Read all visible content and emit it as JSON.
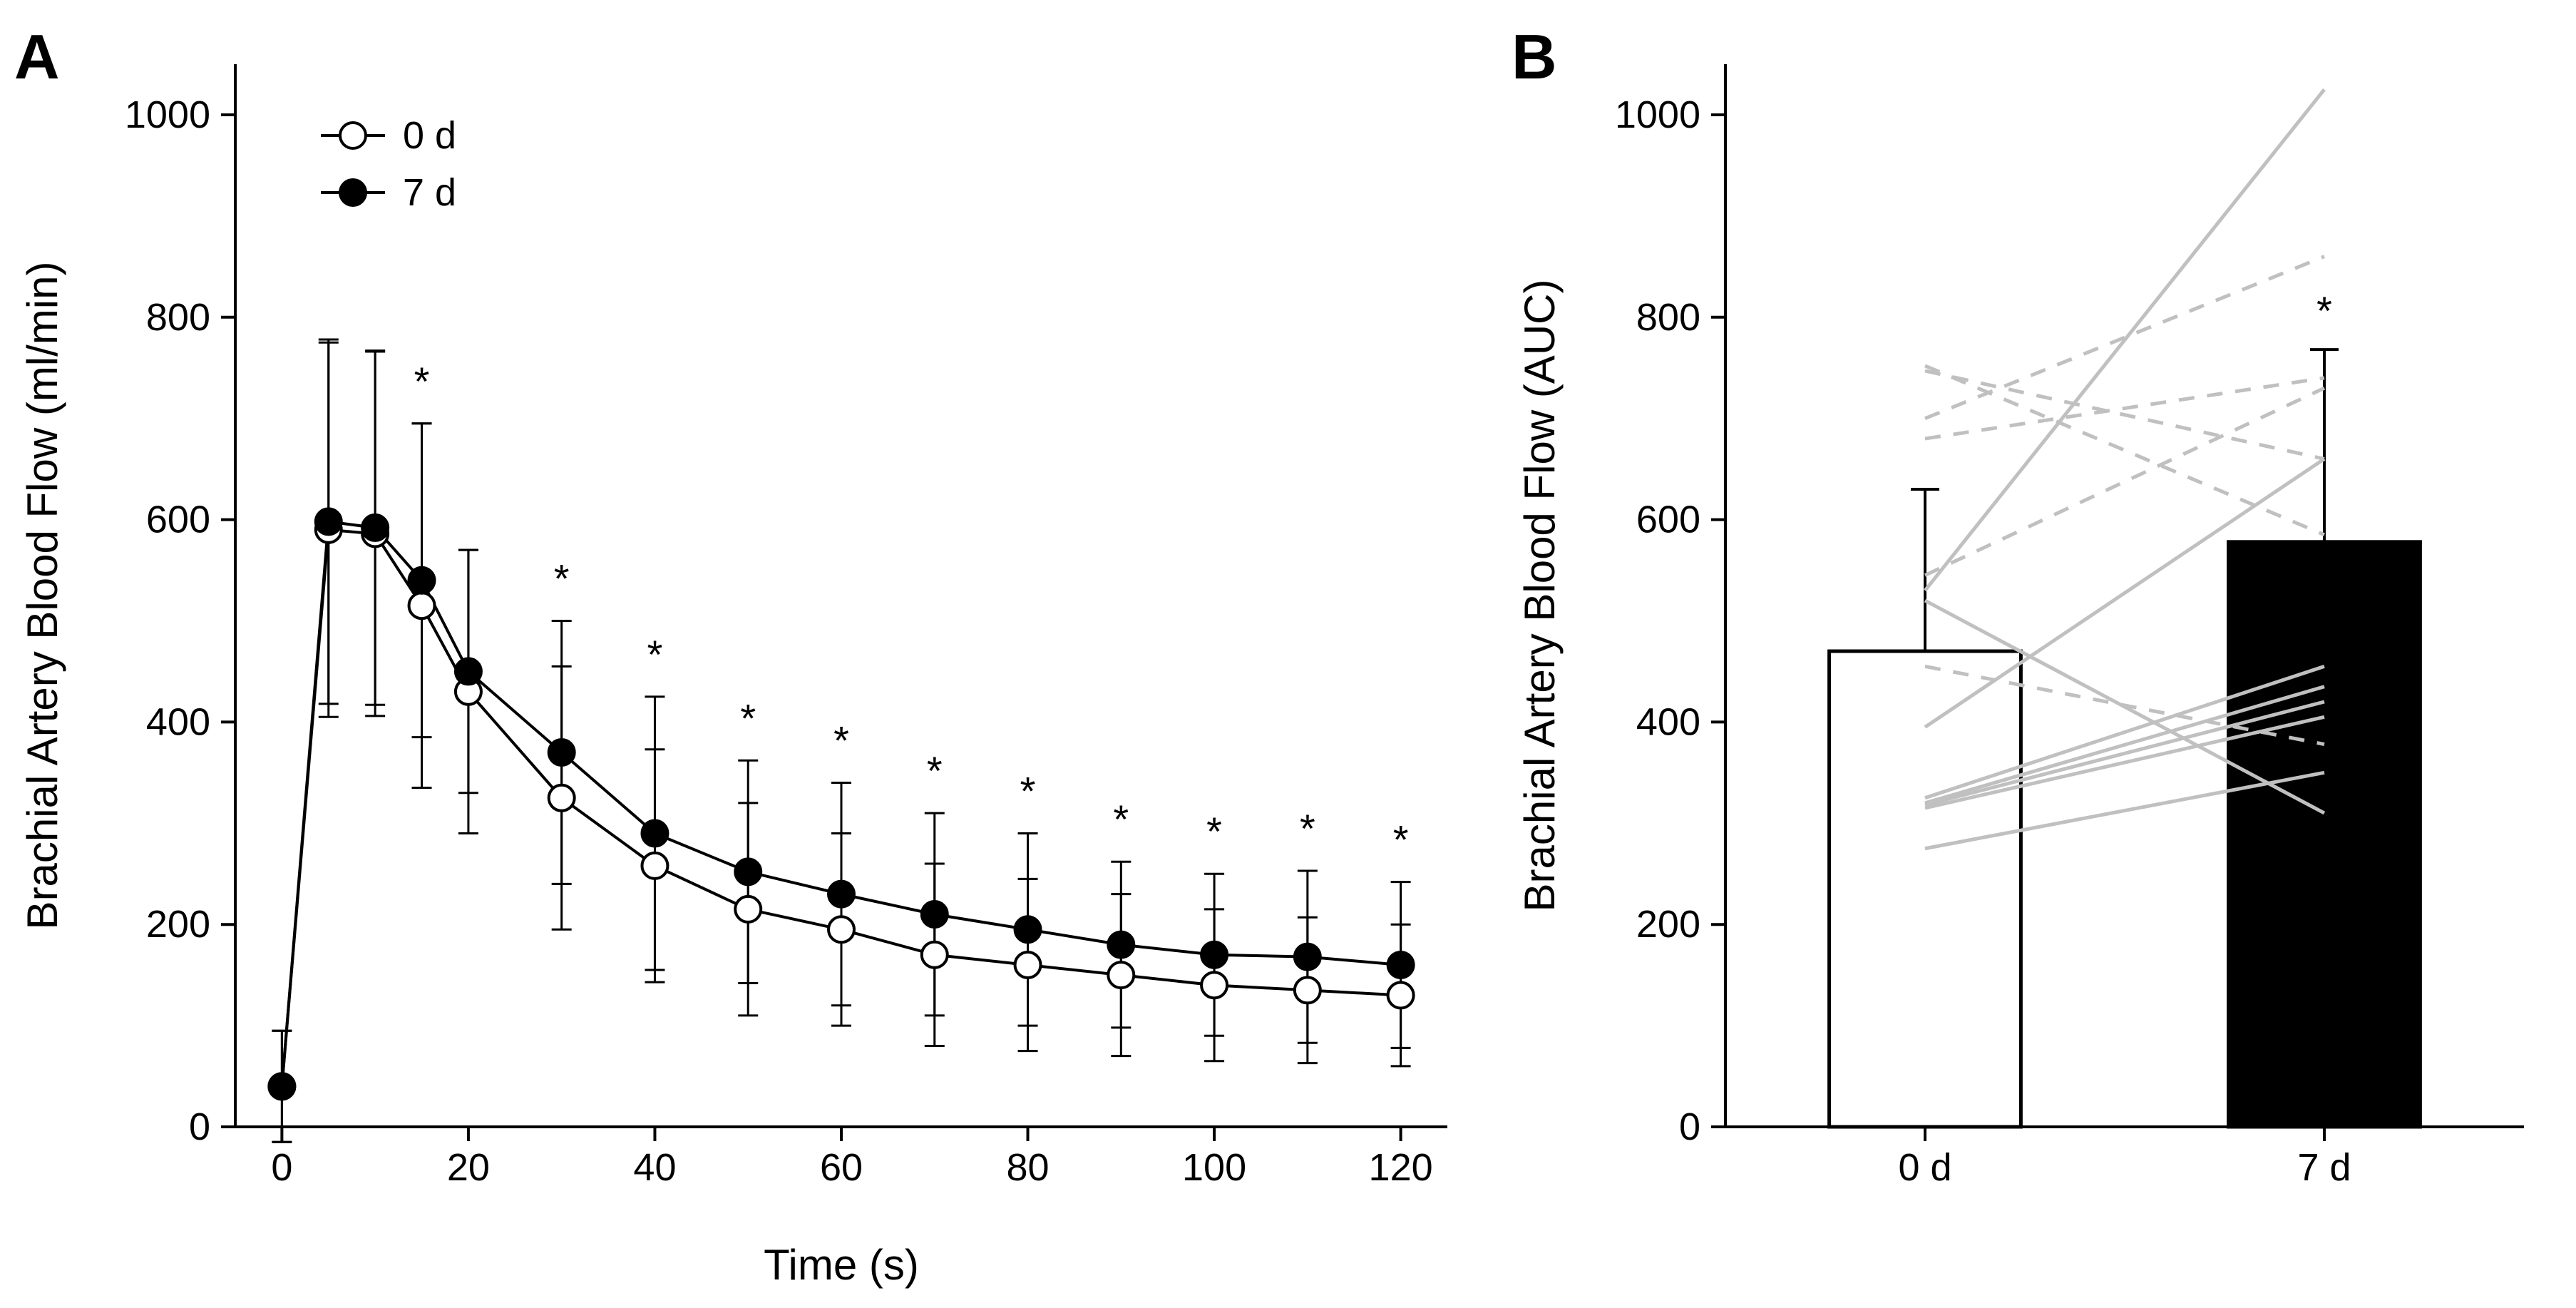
{
  "panelA": {
    "label": "A",
    "label_fontsize": 88,
    "type": "line",
    "xlabel": "Time (s)",
    "ylabel": "Brachial Artery Blood Flow (ml/min)",
    "axis_label_fontsize": 60,
    "tick_fontsize": 54,
    "xlim": [
      -5,
      125
    ],
    "ylim": [
      0,
      1050
    ],
    "xticks": [
      0,
      20,
      40,
      60,
      80,
      100,
      120
    ],
    "yticks": [
      0,
      200,
      400,
      600,
      800,
      1000
    ],
    "background_color": "#ffffff",
    "axis_color": "#000000",
    "legend": {
      "items": [
        {
          "label": "0 d",
          "marker": "open-circle"
        },
        {
          "label": "7 d",
          "marker": "filled-circle"
        }
      ],
      "fontsize": 54
    },
    "series": [
      {
        "name": "0 d",
        "marker": "open-circle",
        "marker_size": 18,
        "line_color": "#000000",
        "line_width": 4,
        "fill_color": "#ffffff",
        "x": [
          0,
          5,
          10,
          15,
          20,
          30,
          40,
          50,
          60,
          70,
          80,
          90,
          100,
          110,
          120
        ],
        "y": [
          40,
          590,
          586,
          515,
          430,
          325,
          258,
          215,
          195,
          170,
          160,
          150,
          140,
          135,
          130
        ],
        "err": [
          55,
          185,
          180,
          180,
          140,
          130,
          115,
          105,
          95,
          90,
          85,
          80,
          75,
          72,
          70
        ]
      },
      {
        "name": "7 d",
        "marker": "filled-circle",
        "marker_size": 18,
        "line_color": "#000000",
        "line_width": 4,
        "fill_color": "#000000",
        "x": [
          0,
          5,
          10,
          15,
          20,
          30,
          40,
          50,
          60,
          70,
          80,
          90,
          100,
          110,
          120
        ],
        "y": [
          40,
          598,
          592,
          540,
          450,
          370,
          290,
          252,
          230,
          210,
          195,
          180,
          170,
          168,
          160
        ],
        "err": [
          55,
          180,
          175,
          155,
          120,
          130,
          135,
          110,
          110,
          100,
          95,
          82,
          80,
          85,
          82
        ]
      }
    ],
    "annotations": {
      "symbol": "*",
      "fontsize": 56,
      "x": [
        15,
        30,
        40,
        50,
        60,
        70,
        80,
        90,
        100,
        110,
        120
      ],
      "y_offset_above_7d_err": 40
    }
  },
  "panelB": {
    "label": "B",
    "label_fontsize": 88,
    "type": "bar+lines",
    "ylabel": "Brachial Artery Blood Flow (AUC)",
    "axis_label_fontsize": 60,
    "tick_fontsize": 54,
    "ylim": [
      0,
      1050
    ],
    "yticks": [
      0,
      200,
      400,
      600,
      800,
      1000
    ],
    "categories": [
      "0 d",
      "7 d"
    ],
    "bar_width": 0.48,
    "bars": [
      {
        "category": "0 d",
        "value": 470,
        "err": 160,
        "fill": "#ffffff",
        "stroke": "#000000",
        "stroke_width": 5
      },
      {
        "category": "7 d",
        "value": 578,
        "err": 190,
        "fill": "#000000",
        "stroke": "#000000",
        "stroke_width": 5
      }
    ],
    "annotation": {
      "symbol": "*",
      "over": "7 d",
      "fontsize": 56,
      "y_offset": 35
    },
    "individual_lines": {
      "color": "#c0c0c0",
      "width": 5,
      "solid": [
        [
          530,
          1025
        ],
        [
          395,
          660
        ],
        [
          318,
          420
        ],
        [
          315,
          405
        ],
        [
          320,
          435
        ],
        [
          275,
          350
        ],
        [
          325,
          455
        ],
        [
          520,
          310
        ]
      ],
      "dashed": [
        [
          747,
          660
        ],
        [
          752,
          585
        ],
        [
          700,
          860
        ],
        [
          680,
          740
        ],
        [
          455,
          378
        ],
        [
          545,
          730
        ]
      ]
    },
    "background_color": "#ffffff",
    "axis_color": "#000000"
  }
}
